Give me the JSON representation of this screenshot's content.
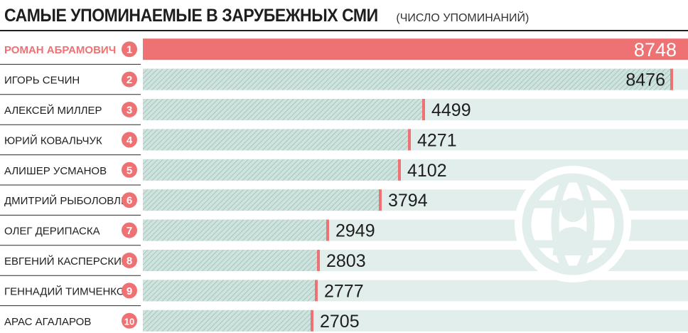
{
  "header": {
    "title": "САМЫЕ УПОМИНАЕМЫЕ В ЗАРУБЕЖНЫХ СМИ",
    "subtitle": "(ЧИСЛО УПОМИНАНИЙ)"
  },
  "colors": {
    "highlight": "#ee7273",
    "bar_fill": "#cfe3de",
    "bar_hatch": "#9bbfb5",
    "track": "#e2eeeb",
    "badge": "#ee7273",
    "text": "#1e1e1e"
  },
  "chart_data": {
    "type": "bar",
    "orientation": "horizontal",
    "title": "САМЫЕ УПОМИНАЕМЫЕ В ЗАРУБЕЖНЫХ СМИ",
    "subtitle": "(ЧИСЛО УПОМИНАНИЙ)",
    "categories": [
      "РОМАН АБРАМОВИЧ",
      "ИГОРЬ СЕЧИН",
      "АЛЕКСЕЙ МИЛЛЕР",
      "ЮРИЙ КОВАЛЬЧУК",
      "АЛИШЕР УСМАНОВ",
      "ДМИТРИЙ РЫБОЛОВЛЕВ",
      "ОЛЕГ ДЕРИПАСКА",
      "ЕВГЕНИЙ КАСПЕРСКИЙ",
      "ГЕННАДИЙ ТИМЧЕНКО",
      "АРАС АГАЛАРОВ"
    ],
    "ranks": [
      "1",
      "2",
      "3",
      "4",
      "5",
      "6",
      "7",
      "8",
      "9",
      "10"
    ],
    "values": [
      8748,
      8476,
      4499,
      4271,
      4102,
      3794,
      2949,
      2803,
      2777,
      2705
    ],
    "value_labels": [
      "8748",
      "8476",
      "4499",
      "4271",
      "4102",
      "3794",
      "2949",
      "2803",
      "2777",
      "2705"
    ],
    "xlim": [
      0,
      8748
    ],
    "highlighted_index": 0,
    "grid": false,
    "legend": "none",
    "decoration": "globe-person-icon"
  }
}
